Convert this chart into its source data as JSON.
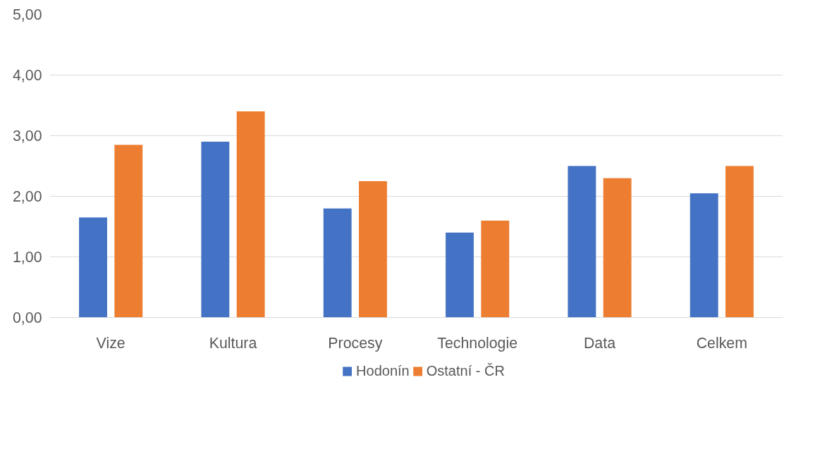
{
  "chart_data": {
    "type": "bar",
    "categories": [
      "Vize",
      "Kultura",
      "Procesy",
      "Technologie",
      "Data",
      "Celkem"
    ],
    "series": [
      {
        "name": "Hodonín",
        "color": "#4472c4",
        "values": [
          1.65,
          2.9,
          1.8,
          1.4,
          2.5,
          2.05
        ]
      },
      {
        "name": "Ostatní - ČR",
        "color": "#ed7d31",
        "values": [
          2.85,
          3.4,
          2.25,
          1.6,
          2.3,
          2.5
        ]
      }
    ],
    "ylim": [
      0,
      5
    ],
    "yticks": [
      {
        "value": 0,
        "label": "0,00"
      },
      {
        "value": 1,
        "label": "1,00"
      },
      {
        "value": 2,
        "label": "2,00"
      },
      {
        "value": 3,
        "label": "3,00"
      },
      {
        "value": 4,
        "label": "4,00"
      },
      {
        "value": 5,
        "label": "5,00"
      }
    ],
    "grid": "y",
    "legend": "bottom"
  }
}
